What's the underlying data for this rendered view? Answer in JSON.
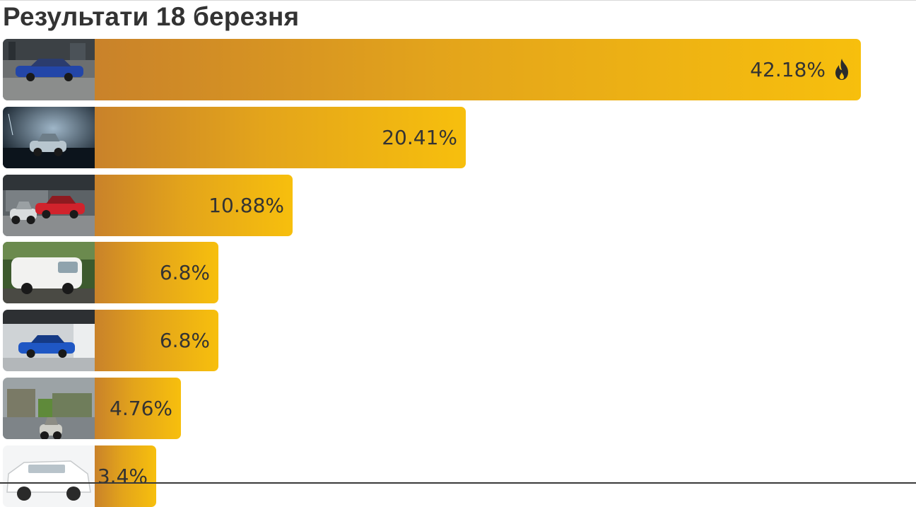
{
  "header": {
    "title": "Результати 18 березня"
  },
  "chart_data": {
    "type": "bar",
    "orientation": "horizontal",
    "title": "Результати 18 березня",
    "unit": "%",
    "xlim": [
      0,
      42.18
    ],
    "bars": [
      {
        "value": 42.18,
        "label": "42.18%",
        "hot": true,
        "photo": "blue-sedan-icon"
      },
      {
        "value": 20.41,
        "label": "20.41%",
        "hot": false,
        "photo": "night-car-icon"
      },
      {
        "value": 10.88,
        "label": "10.88%",
        "hot": false,
        "photo": "red-hatchback-icon"
      },
      {
        "value": 6.8,
        "label": "6.8%",
        "hot": false,
        "photo": "white-van-icon"
      },
      {
        "value": 6.8,
        "label": "6.8%",
        "hot": false,
        "photo": "blue-car-showroom-icon"
      },
      {
        "value": 4.76,
        "label": "4.76%",
        "hot": false,
        "photo": "flooded-street-icon"
      },
      {
        "value": 3.4,
        "label": "3.4%",
        "hot": false,
        "photo": "white-suv-icon"
      }
    ],
    "colors": {
      "bar_start": "#c9822a",
      "bar_end": "#f7bf0d",
      "text": "#333333"
    },
    "icons": {
      "top_bar": "fire-icon"
    }
  }
}
